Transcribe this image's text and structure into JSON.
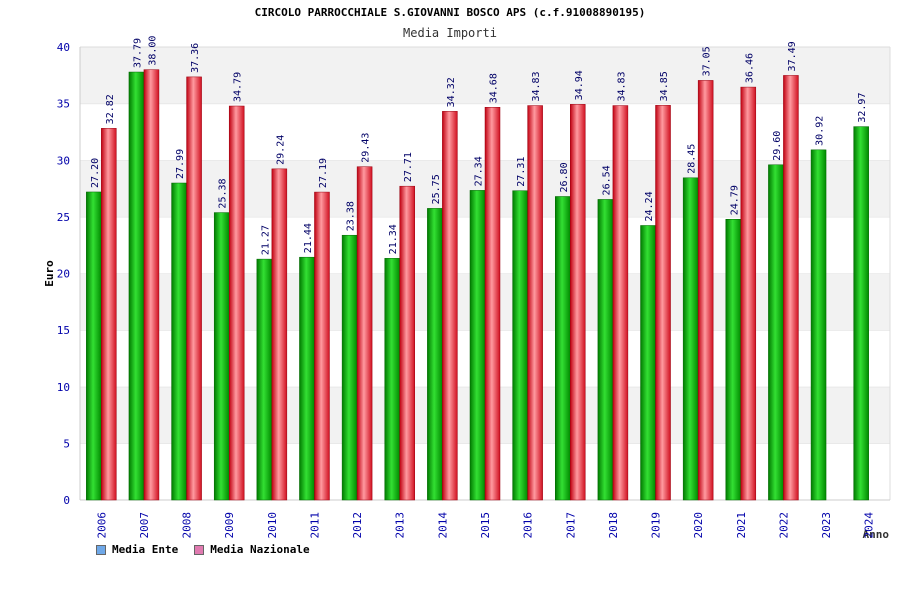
{
  "title": "CIRCOLO PARROCCHIALE S.GIOVANNI BOSCO APS (c.f.91008890195)",
  "subtitle": "Media Importi",
  "colors": {
    "ente": "#00b000",
    "nazionale": "#e8202a",
    "legend_ente": "#6fa8e8",
    "legend_nazionale": "#e07ab0",
    "axis_text": "#0000aa",
    "label_text": "#000066"
  },
  "chart_data": {
    "type": "bar",
    "title": "CIRCOLO PARROCCHIALE S.GIOVANNI BOSCO APS (c.f.91008890195)",
    "subtitle": "Media Importi",
    "xlabel": "Anno",
    "ylabel": "Euro",
    "ylim": [
      0,
      40
    ],
    "yticks": [
      "0",
      "5",
      "10",
      "15",
      "20",
      "25",
      "30",
      "35",
      "40"
    ],
    "categories": [
      "2006",
      "2007",
      "2008",
      "2009",
      "2010",
      "2011",
      "2012",
      "2013",
      "2014",
      "2015",
      "2016",
      "2017",
      "2018",
      "2019",
      "2020",
      "2021",
      "2022",
      "2023",
      "2024"
    ],
    "series": [
      {
        "name": "Media Ente",
        "values": [
          27.2,
          37.79,
          27.99,
          25.38,
          21.27,
          21.44,
          23.38,
          21.34,
          25.75,
          27.34,
          27.31,
          26.8,
          26.54,
          24.24,
          28.45,
          24.79,
          29.6,
          30.92,
          32.97
        ],
        "labels": [
          "27.20",
          "37.79",
          "27.99",
          "25.38",
          "21.27",
          "21.44",
          "23.38",
          "21.34",
          "25.75",
          "27.34",
          "27.31",
          "26.80",
          "26.54",
          "24.24",
          "28.45",
          "24.79",
          "29.60",
          "30.92",
          "32.97"
        ]
      },
      {
        "name": "Media Nazionale",
        "values": [
          32.82,
          38.0,
          37.36,
          34.79,
          29.24,
          27.19,
          29.43,
          27.71,
          34.32,
          34.68,
          34.83,
          34.94,
          34.83,
          34.85,
          37.05,
          36.46,
          37.49,
          null,
          null
        ],
        "labels": [
          "32.82",
          "38.00",
          "37.36",
          "34.79",
          "29.24",
          "27.19",
          "29.43",
          "27.71",
          "34.32",
          "34.68",
          "34.83",
          "34.94",
          "34.83",
          "34.85",
          "37.05",
          "36.46",
          "37.49",
          null,
          null
        ]
      }
    ],
    "legend": [
      "Media Ente",
      "Media Nazionale"
    ],
    "grid": true,
    "legend_position": "bottom-left"
  }
}
